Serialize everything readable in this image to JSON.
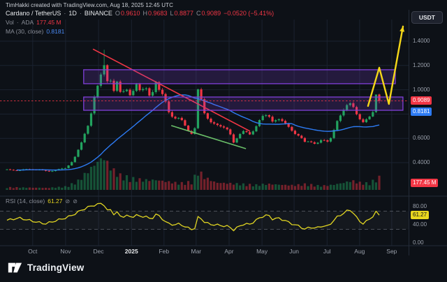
{
  "meta": {
    "attribution": "TimHakki created with TradingView.com, Aug 18, 2025 12:45 UTC"
  },
  "header": {
    "symbol": "Cardano / TetherUS",
    "separator": "·",
    "interval": "1D",
    "exchange": "BINANCE",
    "ohlc": {
      "o_label": "O",
      "o_value": "0.9610",
      "h_label": "H",
      "h_value": "0.9683",
      "l_label": "L",
      "l_value": "0.8877",
      "c_label": "C",
      "c_value": "0.9089",
      "change": "−0.0520 (−5.41%)"
    },
    "vol": {
      "label": "Vol",
      "symbol": "ADA",
      "value": "177.45 M"
    },
    "ma": {
      "label": "MA (30, close)",
      "value": "0.8181"
    },
    "currency_button": "USDT"
  },
  "price_scale": {
    "ticks": [
      {
        "label": "1.4000",
        "value": 1.4
      },
      {
        "label": "1.2000",
        "value": 1.2
      },
      {
        "label": "1.0000",
        "value": 1.0
      },
      {
        "label": "0.8000",
        "value": 0.8
      },
      {
        "label": "0.6000",
        "value": 0.6
      },
      {
        "label": "0.4000",
        "value": 0.4
      }
    ],
    "last_price_label": "0.9089",
    "ma_label": "0.8181",
    "volume_label": "177.45 M"
  },
  "time_axis": {
    "labels": [
      {
        "label": "Oct",
        "u": 0.064
      },
      {
        "label": "Nov",
        "u": 0.146
      },
      {
        "label": "Dec",
        "u": 0.228
      },
      {
        "label": "2025",
        "u": 0.31,
        "em": true
      },
      {
        "label": "Feb",
        "u": 0.391
      },
      {
        "label": "Mar",
        "u": 0.471
      },
      {
        "label": "Apr",
        "u": 0.553
      },
      {
        "label": "May",
        "u": 0.635
      },
      {
        "label": "Jun",
        "u": 0.715
      },
      {
        "label": "Jul",
        "u": 0.797
      },
      {
        "label": "Aug",
        "u": 0.878
      },
      {
        "label": "Sep",
        "u": 0.958
      }
    ]
  },
  "rsi": {
    "legend": "RSI (14, close)",
    "value": "61.27",
    "icon": "⊘",
    "upper_band": 70,
    "lower_band": 30,
    "ticks": [
      {
        "label": "80.00",
        "value": 80
      },
      {
        "label": "40.00",
        "value": 40
      },
      {
        "label": "0.00",
        "value": 0
      }
    ]
  },
  "footer": {
    "brand": "TradingView"
  },
  "colors": {
    "bg": "#0d1117",
    "grid": "#1b2230",
    "panel_border": "#242b38",
    "up": "#22a35f",
    "down": "#f23645",
    "vol_up": "rgba(34,163,95,0.45)",
    "vol_down": "rgba(242,54,69,0.45)",
    "ma": "#2d7bf4",
    "trend_red": "#f23645",
    "trend_green": "#6abf69",
    "box_stroke": "#8040d9",
    "box_fill": "rgba(128,64,217,0.20)",
    "arrow": "#f5d718",
    "rsi": "#e0d422",
    "rsi_badge": "#e8d61f"
  },
  "chart_data": {
    "type": "candlestick",
    "symbol": "ADA/USDT",
    "exchange": "BINANCE",
    "interval": "1D",
    "x_range": [
      "Oct 2024",
      "Sep 2025"
    ],
    "ylim": [
      0.32,
      1.45
    ],
    "y_ticks": [
      1.4,
      1.2,
      1.0,
      0.8,
      0.6,
      0.4
    ],
    "last": {
      "open": 0.961,
      "high": 0.9683,
      "low": 0.8877,
      "close": 0.9089,
      "change": -0.052,
      "change_pct": -5.41,
      "volume": "177.45 M",
      "ma30": 0.8181,
      "rsi": 61.27
    },
    "u_last": 0.927,
    "peak_high": 1.33,
    "price_path": [
      [
        0.0,
        0.345
      ],
      [
        0.03,
        0.335
      ],
      [
        0.064,
        0.35
      ],
      [
        0.095,
        0.33
      ],
      [
        0.125,
        0.34
      ],
      [
        0.146,
        0.355
      ],
      [
        0.165,
        0.42
      ],
      [
        0.185,
        0.56
      ],
      [
        0.205,
        0.73
      ],
      [
        0.22,
        1.0
      ],
      [
        0.232,
        1.08
      ],
      [
        0.24,
        1.22
      ],
      [
        0.248,
        1.05
      ],
      [
        0.256,
        1.13
      ],
      [
        0.264,
        0.98
      ],
      [
        0.272,
        1.09
      ],
      [
        0.285,
        0.93
      ],
      [
        0.295,
        1.02
      ],
      [
        0.31,
        0.95
      ],
      [
        0.32,
        1.06
      ],
      [
        0.332,
        0.98
      ],
      [
        0.345,
        1.02
      ],
      [
        0.358,
        0.93
      ],
      [
        0.37,
        1.08
      ],
      [
        0.38,
        0.99
      ],
      [
        0.391,
        0.93
      ],
      [
        0.402,
        0.82
      ],
      [
        0.415,
        0.78
      ],
      [
        0.43,
        0.76
      ],
      [
        0.445,
        0.69
      ],
      [
        0.458,
        0.64
      ],
      [
        0.47,
        0.7
      ],
      [
        0.477,
        1.07
      ],
      [
        0.485,
        0.88
      ],
      [
        0.492,
        0.8
      ],
      [
        0.505,
        0.74
      ],
      [
        0.52,
        0.72
      ],
      [
        0.535,
        0.69
      ],
      [
        0.553,
        0.66
      ],
      [
        0.565,
        0.57
      ],
      [
        0.575,
        0.62
      ],
      [
        0.59,
        0.65
      ],
      [
        0.605,
        0.64
      ],
      [
        0.62,
        0.7
      ],
      [
        0.635,
        0.77
      ],
      [
        0.65,
        0.8
      ],
      [
        0.662,
        0.74
      ],
      [
        0.675,
        0.76
      ],
      [
        0.69,
        0.73
      ],
      [
        0.705,
        0.68
      ],
      [
        0.715,
        0.65
      ],
      [
        0.728,
        0.62
      ],
      [
        0.742,
        0.56
      ],
      [
        0.755,
        0.58
      ],
      [
        0.77,
        0.56
      ],
      [
        0.785,
        0.58
      ],
      [
        0.797,
        0.57
      ],
      [
        0.808,
        0.62
      ],
      [
        0.82,
        0.73
      ],
      [
        0.832,
        0.79
      ],
      [
        0.845,
        0.87
      ],
      [
        0.858,
        0.9
      ],
      [
        0.868,
        0.82
      ],
      [
        0.878,
        0.76
      ],
      [
        0.888,
        0.72
      ],
      [
        0.898,
        0.76
      ],
      [
        0.908,
        0.8
      ],
      [
        0.916,
        0.88
      ],
      [
        0.922,
        0.96
      ],
      [
        0.927,
        0.909
      ]
    ],
    "volume_path": [
      [
        0.0,
        0.08
      ],
      [
        0.1,
        0.06
      ],
      [
        0.146,
        0.1
      ],
      [
        0.175,
        0.25
      ],
      [
        0.2,
        0.55
      ],
      [
        0.225,
        0.85
      ],
      [
        0.24,
        1.0
      ],
      [
        0.26,
        0.65
      ],
      [
        0.28,
        0.45
      ],
      [
        0.31,
        0.35
      ],
      [
        0.34,
        0.3
      ],
      [
        0.37,
        0.3
      ],
      [
        0.4,
        0.25
      ],
      [
        0.43,
        0.2
      ],
      [
        0.46,
        0.25
      ],
      [
        0.477,
        0.6
      ],
      [
        0.49,
        0.4
      ],
      [
        0.52,
        0.22
      ],
      [
        0.553,
        0.2
      ],
      [
        0.58,
        0.18
      ],
      [
        0.62,
        0.15
      ],
      [
        0.65,
        0.18
      ],
      [
        0.69,
        0.15
      ],
      [
        0.715,
        0.14
      ],
      [
        0.745,
        0.18
      ],
      [
        0.78,
        0.12
      ],
      [
        0.81,
        0.15
      ],
      [
        0.84,
        0.22
      ],
      [
        0.858,
        0.28
      ],
      [
        0.878,
        0.22
      ],
      [
        0.9,
        0.2
      ],
      [
        0.916,
        0.3
      ],
      [
        0.927,
        0.38
      ]
    ],
    "rsi_path": [
      [
        0.0,
        50
      ],
      [
        0.03,
        55
      ],
      [
        0.064,
        48
      ],
      [
        0.095,
        42
      ],
      [
        0.125,
        50
      ],
      [
        0.146,
        55
      ],
      [
        0.165,
        62
      ],
      [
        0.185,
        72
      ],
      [
        0.205,
        80
      ],
      [
        0.225,
        85
      ],
      [
        0.24,
        88
      ],
      [
        0.248,
        70
      ],
      [
        0.256,
        76
      ],
      [
        0.264,
        62
      ],
      [
        0.272,
        70
      ],
      [
        0.285,
        55
      ],
      [
        0.295,
        62
      ],
      [
        0.31,
        55
      ],
      [
        0.32,
        63
      ],
      [
        0.332,
        57
      ],
      [
        0.345,
        60
      ],
      [
        0.358,
        50
      ],
      [
        0.37,
        64
      ],
      [
        0.38,
        58
      ],
      [
        0.391,
        50
      ],
      [
        0.402,
        42
      ],
      [
        0.415,
        40
      ],
      [
        0.43,
        42
      ],
      [
        0.445,
        35
      ],
      [
        0.458,
        30
      ],
      [
        0.47,
        33
      ],
      [
        0.477,
        62
      ],
      [
        0.485,
        52
      ],
      [
        0.492,
        46
      ],
      [
        0.505,
        41
      ],
      [
        0.52,
        40
      ],
      [
        0.535,
        38
      ],
      [
        0.553,
        36
      ],
      [
        0.565,
        28
      ],
      [
        0.575,
        35
      ],
      [
        0.59,
        42
      ],
      [
        0.605,
        41
      ],
      [
        0.62,
        50
      ],
      [
        0.635,
        58
      ],
      [
        0.65,
        62
      ],
      [
        0.662,
        52
      ],
      [
        0.675,
        55
      ],
      [
        0.69,
        50
      ],
      [
        0.705,
        44
      ],
      [
        0.715,
        40
      ],
      [
        0.728,
        37
      ],
      [
        0.742,
        30
      ],
      [
        0.755,
        35
      ],
      [
        0.77,
        32
      ],
      [
        0.785,
        38
      ],
      [
        0.797,
        36
      ],
      [
        0.808,
        44
      ],
      [
        0.82,
        56
      ],
      [
        0.832,
        62
      ],
      [
        0.845,
        70
      ],
      [
        0.858,
        73
      ],
      [
        0.868,
        58
      ],
      [
        0.878,
        48
      ],
      [
        0.888,
        42
      ],
      [
        0.898,
        50
      ],
      [
        0.908,
        56
      ],
      [
        0.916,
        64
      ],
      [
        0.922,
        72
      ],
      [
        0.927,
        61.27
      ]
    ],
    "annotations": {
      "boxes": [
        {
          "t1": 0.191,
          "t2": 0.967,
          "p1": 1.05,
          "p2": 1.165
        },
        {
          "t1": 0.191,
          "t2": 0.986,
          "p1": 0.831,
          "p2": 0.94
        }
      ],
      "trendlines": [
        {
          "color": "red",
          "from": [
            0.214,
            1.335
          ],
          "to": [
            0.605,
            0.659
          ]
        },
        {
          "color": "green",
          "from": [
            0.409,
            0.705
          ],
          "to": [
            0.595,
            0.515
          ]
        }
      ],
      "arrow": {
        "color": "yellow",
        "points": [
          [
            0.899,
            0.866
          ],
          [
            0.927,
            1.182
          ],
          [
            0.951,
            0.883
          ],
          [
            0.986,
            1.521
          ]
        ]
      },
      "hline": {
        "price": 0.9089
      }
    }
  }
}
